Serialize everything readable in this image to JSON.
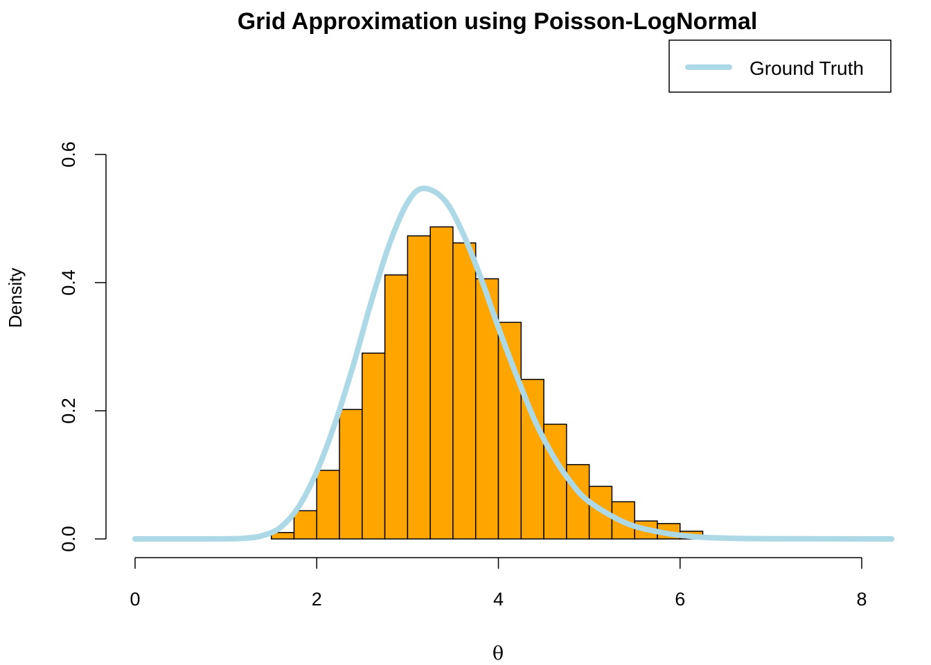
{
  "chart_data": {
    "type": "bar",
    "title": "Grid Approximation using Poisson-LogNormal",
    "xlabel": "θ",
    "ylabel": "Density",
    "xlim": [
      0,
      8
    ],
    "ylim": [
      0,
      0.6
    ],
    "x_ticks": [
      "0",
      "2",
      "4",
      "6",
      "8"
    ],
    "y_ticks": [
      "0.0",
      "0.2",
      "0.4",
      "0.6"
    ],
    "grid": false,
    "legend_position": "top-right",
    "histogram": {
      "bin_width": 0.25,
      "bin_start": 1.5,
      "fill_color": "#FFA500",
      "values": [
        0.01,
        0.044,
        0.107,
        0.202,
        0.29,
        0.412,
        0.473,
        0.487,
        0.462,
        0.406,
        0.338,
        0.249,
        0.179,
        0.116,
        0.082,
        0.058,
        0.028,
        0.024,
        0.012,
        0.004,
        0.001
      ]
    },
    "series": [
      {
        "name": "Ground Truth",
        "type": "line",
        "color": "#ADD8E6",
        "x": [
          0,
          0.5,
          1.0,
          1.2,
          1.4,
          1.6,
          1.8,
          2.0,
          2.2,
          2.4,
          2.6,
          2.8,
          3.0,
          3.17,
          3.4,
          3.6,
          3.8,
          4.0,
          4.2,
          4.4,
          4.6,
          4.8,
          5.0,
          5.4,
          5.8,
          6.2,
          6.6,
          7.0,
          8.33
        ],
        "y": [
          0,
          0,
          0.0002,
          0.001,
          0.005,
          0.018,
          0.05,
          0.105,
          0.18,
          0.27,
          0.37,
          0.46,
          0.525,
          0.547,
          0.53,
          0.48,
          0.41,
          0.33,
          0.255,
          0.185,
          0.13,
          0.088,
          0.058,
          0.025,
          0.01,
          0.003,
          0.001,
          0.0003,
          0
        ]
      }
    ]
  }
}
